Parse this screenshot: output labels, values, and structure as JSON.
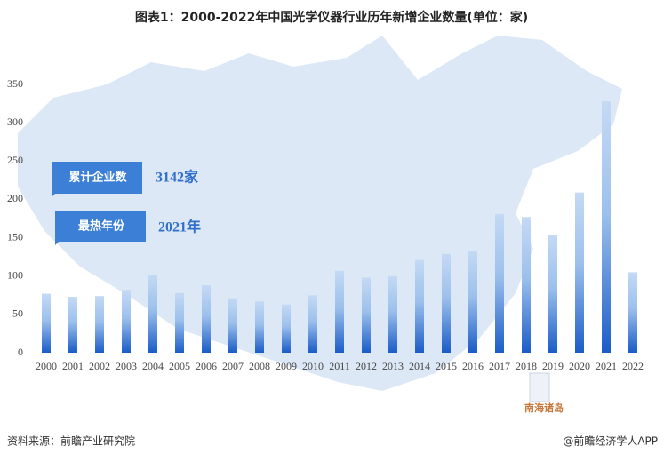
{
  "chart_data": {
    "type": "bar",
    "title": "图表1：2000-2022年中国光学仪器行业历年新增企业数量(单位：家)",
    "categories": [
      "2000",
      "2001",
      "2002",
      "2003",
      "2004",
      "2005",
      "2006",
      "2007",
      "2008",
      "2009",
      "2010",
      "2011",
      "2012",
      "2013",
      "2014",
      "2015",
      "2016",
      "2017",
      "2018",
      "2019",
      "2020",
      "2021",
      "2022"
    ],
    "values": [
      77,
      73,
      74,
      82,
      102,
      78,
      88,
      71,
      67,
      63,
      75,
      107,
      98,
      100,
      121,
      129,
      133,
      181,
      177,
      154,
      209,
      328,
      105
    ],
    "color": "#1a5cc8",
    "ylim": [
      0,
      350
    ],
    "yticks": [
      0,
      50,
      100,
      150,
      200,
      250,
      300,
      350
    ],
    "grid": false,
    "callouts": [
      {
        "label": "累计企业数",
        "value": "3142家"
      },
      {
        "label": "最热年份",
        "value": "2021年"
      }
    ],
    "map_note": "南海诸岛",
    "source": "资料来源：前瞻产业研究院",
    "credit": "@前瞻经济学人APP"
  }
}
